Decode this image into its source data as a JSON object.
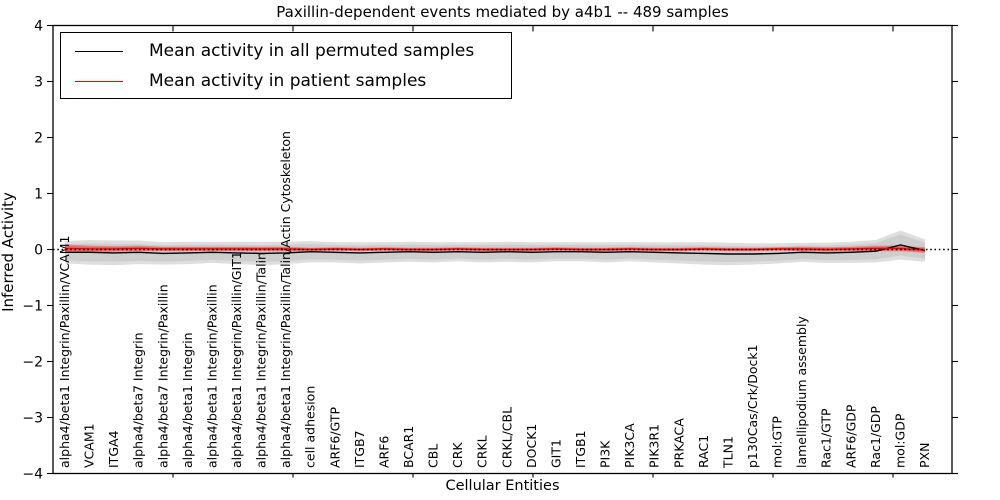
{
  "chart_data": {
    "type": "line",
    "title": "Paxillin-dependent events mediated by a4b1 -- 489 samples",
    "xlabel": "Cellular Entities",
    "ylabel": "Inferred Activity",
    "ylim": [
      -4,
      4
    ],
    "yticks": [
      -4,
      -3,
      -2,
      -1,
      0,
      1,
      2,
      3,
      4
    ],
    "grid": false,
    "legend_position": "upper left",
    "zero_line": {
      "style": "dotted",
      "color": "#000000",
      "y": 0
    },
    "categories": [
      "alpha4/beta1 Integrin/Paxillin/VCAM1",
      "VCAM1",
      "ITGA4",
      "alpha4/beta7 Integrin",
      "alpha4/beta7 Integrin/Paxillin",
      "alpha4/beta1 Integrin",
      "alpha4/beta1 Integrin/Paxillin",
      "alpha4/beta1 Integrin/Paxillin/GIT1",
      "alpha4/beta1 Integrin/Paxillin/Talin",
      "alpha4/beta1 Integrin/Paxillin/Talin/Actin Cytoskeleton",
      "cell adhesion",
      "ARF6/GTP",
      "ITGB7",
      "ARF6",
      "BCAR1",
      "CBL",
      "CRK",
      "CRKL",
      "CRKL/CBL",
      "DOCK1",
      "GIT1",
      "ITGB1",
      "PI3K",
      "PIK3CA",
      "PIK3R1",
      "PRKACA",
      "RAC1",
      "TLN1",
      "p130Cas/Crk/Dock1",
      "mol:GTP",
      "lamellipodium assembly",
      "Rac1/GTP",
      "ARF6/GDP",
      "Rac1/GDP",
      "mol:GDP",
      "PXN"
    ],
    "series": [
      {
        "name": "Mean activity in all permuted samples",
        "color": "#000000",
        "band_color": "#000000",
        "band_alpha": 0.13,
        "values": [
          -0.05,
          -0.05,
          -0.06,
          -0.05,
          -0.07,
          -0.06,
          -0.05,
          -0.06,
          -0.07,
          -0.06,
          -0.04,
          -0.05,
          -0.06,
          -0.05,
          -0.04,
          -0.05,
          -0.04,
          -0.05,
          -0.04,
          -0.05,
          -0.04,
          -0.04,
          -0.05,
          -0.04,
          -0.05,
          -0.06,
          -0.07,
          -0.08,
          -0.08,
          -0.07,
          -0.05,
          -0.06,
          -0.05,
          -0.03,
          0.08,
          -0.02
        ],
        "band_halfwidth": [
          0.2,
          0.22,
          0.22,
          0.21,
          0.2,
          0.2,
          0.19,
          0.2,
          0.21,
          0.2,
          0.19,
          0.18,
          0.19,
          0.18,
          0.18,
          0.18,
          0.17,
          0.18,
          0.18,
          0.18,
          0.17,
          0.17,
          0.18,
          0.17,
          0.18,
          0.19,
          0.2,
          0.2,
          0.19,
          0.18,
          0.17,
          0.18,
          0.19,
          0.2,
          0.26,
          0.2
        ]
      },
      {
        "name": "Mean activity in patient samples",
        "color": "#ff0000",
        "band_color": "#ff0000",
        "band_alpha": 0.35,
        "values": [
          0.02,
          0.01,
          0.01,
          0.02,
          0.01,
          0.01,
          0.01,
          0.01,
          0.01,
          0.01,
          0.0,
          0.01,
          0.0,
          0.01,
          0.0,
          0.0,
          0.01,
          0.0,
          0.0,
          0.0,
          0.01,
          0.0,
          0.0,
          0.01,
          0.0,
          0.0,
          0.01,
          0.0,
          0.0,
          0.01,
          0.01,
          0.0,
          0.01,
          0.02,
          0.02,
          -0.01
        ],
        "band_halfwidth": [
          0.07,
          0.06,
          0.05,
          0.05,
          0.04,
          0.04,
          0.04,
          0.04,
          0.04,
          0.04,
          0.03,
          0.03,
          0.03,
          0.03,
          0.03,
          0.03,
          0.03,
          0.03,
          0.03,
          0.03,
          0.03,
          0.03,
          0.03,
          0.03,
          0.03,
          0.03,
          0.03,
          0.03,
          0.03,
          0.03,
          0.04,
          0.04,
          0.04,
          0.05,
          0.05,
          0.05
        ]
      }
    ]
  }
}
